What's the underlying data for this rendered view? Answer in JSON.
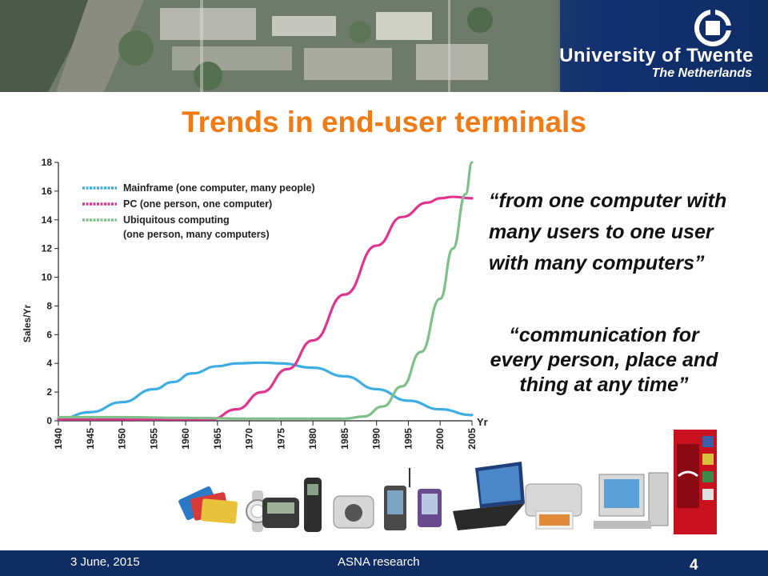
{
  "header": {
    "university": "University of Twente",
    "country": "The Netherlands"
  },
  "slide_title": "Trends in end-user terminals",
  "quote_main": "“from one computer with many users  to one user with many computers”",
  "quote_secondary": "“communication for every person, place and thing at any time”",
  "footer": {
    "date": "3 June, 2015",
    "center": "ASNA research",
    "page": "4"
  },
  "colors": {
    "title": "#f07a14",
    "mainframe": "#3daee3",
    "pc": "#e0358f",
    "ubiquitous": "#7fbf8a",
    "footer_bg": "#0f2c63"
  },
  "chart_data": {
    "type": "line",
    "title": "",
    "xlabel": "Yr",
    "ylabel": "Sales/Yr",
    "xlim": [
      1940,
      2005
    ],
    "ylim": [
      0,
      18
    ],
    "x_ticks": [
      1940,
      1945,
      1950,
      1955,
      1960,
      1965,
      1970,
      1975,
      1980,
      1985,
      1990,
      1995,
      2000,
      2005
    ],
    "y_ticks": [
      0,
      2,
      4,
      6,
      8,
      10,
      12,
      14,
      16,
      18
    ],
    "grid": false,
    "legend_position": "top-left",
    "series": [
      {
        "name": "Mainframe (one computer, many people)",
        "color": "#3daee3",
        "x": [
          1940,
          1945,
          1950,
          1955,
          1958,
          1961,
          1965,
          1968,
          1972,
          1975,
          1980,
          1985,
          1990,
          1995,
          2000,
          2005
        ],
        "y": [
          0.1,
          0.6,
          1.3,
          2.2,
          2.7,
          3.3,
          3.8,
          4.0,
          4.05,
          4.0,
          3.7,
          3.1,
          2.2,
          1.4,
          0.8,
          0.4
        ]
      },
      {
        "name": "PC (one person, one computer)",
        "color": "#e0358f",
        "x": [
          1940,
          1955,
          1964,
          1968,
          1972,
          1976,
          1980,
          1985,
          1990,
          1994,
          1998,
          2000,
          2002,
          2005
        ],
        "y": [
          0.1,
          0.1,
          0.1,
          0.8,
          2.0,
          3.6,
          5.6,
          8.8,
          12.2,
          14.2,
          15.2,
          15.5,
          15.6,
          15.5
        ]
      },
      {
        "name": "Ubiquitous computing (one person, many computers)",
        "color": "#7fbf8a",
        "x": [
          1940,
          1950,
          1960,
          1970,
          1980,
          1985,
          1988,
          1991,
          1994,
          1997,
          2000,
          2002,
          2004,
          2005
        ],
        "y": [
          0.25,
          0.25,
          0.2,
          0.15,
          0.15,
          0.15,
          0.3,
          1.0,
          2.4,
          4.8,
          8.5,
          12.0,
          15.8,
          18.0
        ]
      }
    ]
  }
}
